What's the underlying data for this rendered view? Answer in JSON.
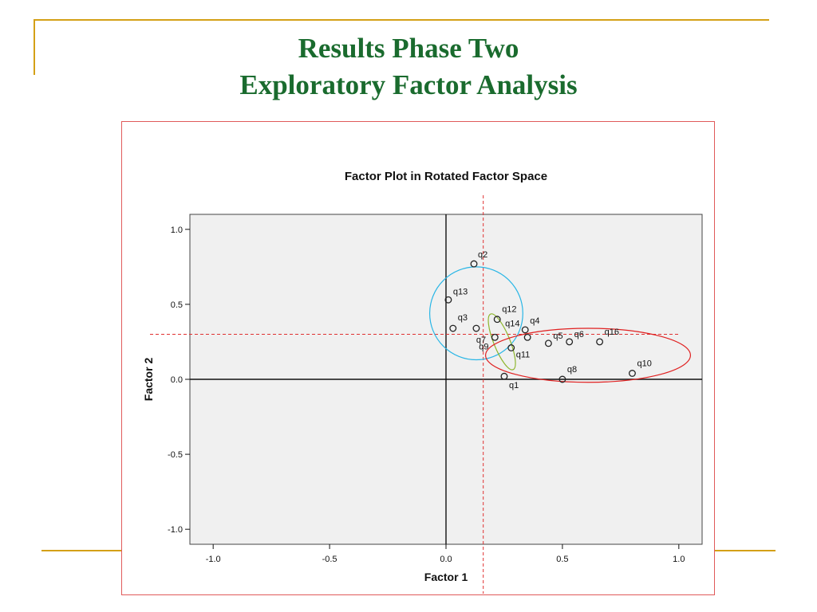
{
  "slide": {
    "title_line1": "Results Phase Two",
    "title_line2": "Exploratory Factor Analysis",
    "colors": {
      "title": "#1a6b2e",
      "decor": "#d4a017",
      "frame": "#e05a5a"
    }
  },
  "chart_data": {
    "type": "scatter",
    "title": "Factor Plot in Rotated Factor Space",
    "xlabel": "Factor 1",
    "ylabel": "Factor 2",
    "xlim": [
      -1.1,
      1.1
    ],
    "ylim": [
      -1.1,
      1.1
    ],
    "xticks": [
      -1.0,
      -0.5,
      0.0,
      0.5,
      1.0
    ],
    "yticks": [
      1.0,
      0.5,
      0.0,
      -0.5,
      -1.0
    ],
    "xtick_labels": [
      "-1.0",
      "-0.5",
      "0.0",
      "0.5",
      "1.0"
    ],
    "ytick_labels": [
      "1.0",
      "0.5",
      "0.0",
      "-0.5",
      "-1.0"
    ],
    "grid": false,
    "plot_background": "#f0f0f0",
    "points": [
      {
        "label": "q1",
        "x": 0.25,
        "y": 0.02
      },
      {
        "label": "q2",
        "x": 0.12,
        "y": 0.77
      },
      {
        "label": "q3",
        "x": 0.03,
        "y": 0.34
      },
      {
        "label": "q4",
        "x": 0.34,
        "y": 0.33
      },
      {
        "label": "q5",
        "x": 0.44,
        "y": 0.24
      },
      {
        "label": "q6",
        "x": 0.53,
        "y": 0.25
      },
      {
        "label": "q7",
        "x": 0.13,
        "y": 0.34
      },
      {
        "label": "q8",
        "x": 0.5,
        "y": 0.0
      },
      {
        "label": "q9",
        "x": 0.21,
        "y": 0.28
      },
      {
        "label": "q10",
        "x": 0.8,
        "y": 0.04
      },
      {
        "label": "q11",
        "x": 0.28,
        "y": 0.21
      },
      {
        "label": "q12",
        "x": 0.22,
        "y": 0.4
      },
      {
        "label": "q13",
        "x": 0.01,
        "y": 0.53
      },
      {
        "label": "q14",
        "x": 0.35,
        "y": 0.28
      },
      {
        "label": "q16",
        "x": 0.66,
        "y": 0.25
      }
    ],
    "reference_lines": [
      {
        "orientation": "vertical",
        "value": 0.16,
        "color": "#e03030",
        "style": "dashed"
      },
      {
        "orientation": "horizontal",
        "value": 0.3,
        "color": "#e03030",
        "style": "dashed"
      }
    ],
    "annotations": [
      {
        "shape": "ellipse",
        "color": "#29b6e6",
        "cx": 0.13,
        "cy": 0.44,
        "rx": 0.2,
        "ry": 0.31,
        "rotation": 0
      },
      {
        "shape": "ellipse",
        "color": "#8db52c",
        "cx": 0.24,
        "cy": 0.25,
        "rx": 0.035,
        "ry": 0.2,
        "rotation": -22
      },
      {
        "shape": "ellipse",
        "color": "#e02020",
        "cx": 0.61,
        "cy": 0.16,
        "rx": 0.44,
        "ry": 0.18,
        "rotation": 0
      }
    ]
  }
}
